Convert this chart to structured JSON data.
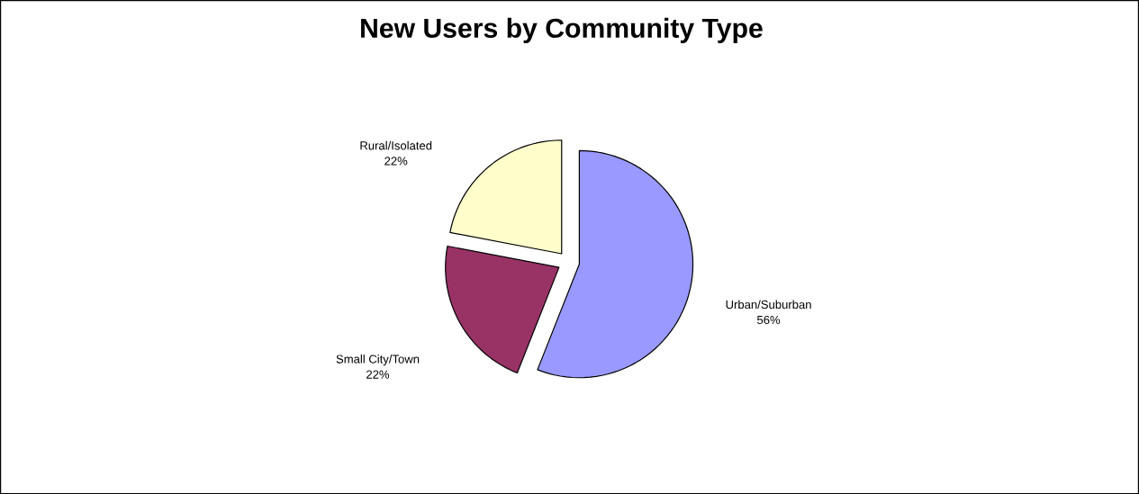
{
  "chart_data": {
    "type": "pie",
    "title": "New Users by Community Type",
    "categories": [
      "Urban/Suburban",
      "Small City/Town",
      "Rural/Isolated"
    ],
    "values": [
      56,
      22,
      22
    ],
    "value_labels": [
      "56%",
      "22%",
      "22%"
    ],
    "colors": [
      "#9999ff",
      "#993366",
      "#ffffcc"
    ]
  }
}
